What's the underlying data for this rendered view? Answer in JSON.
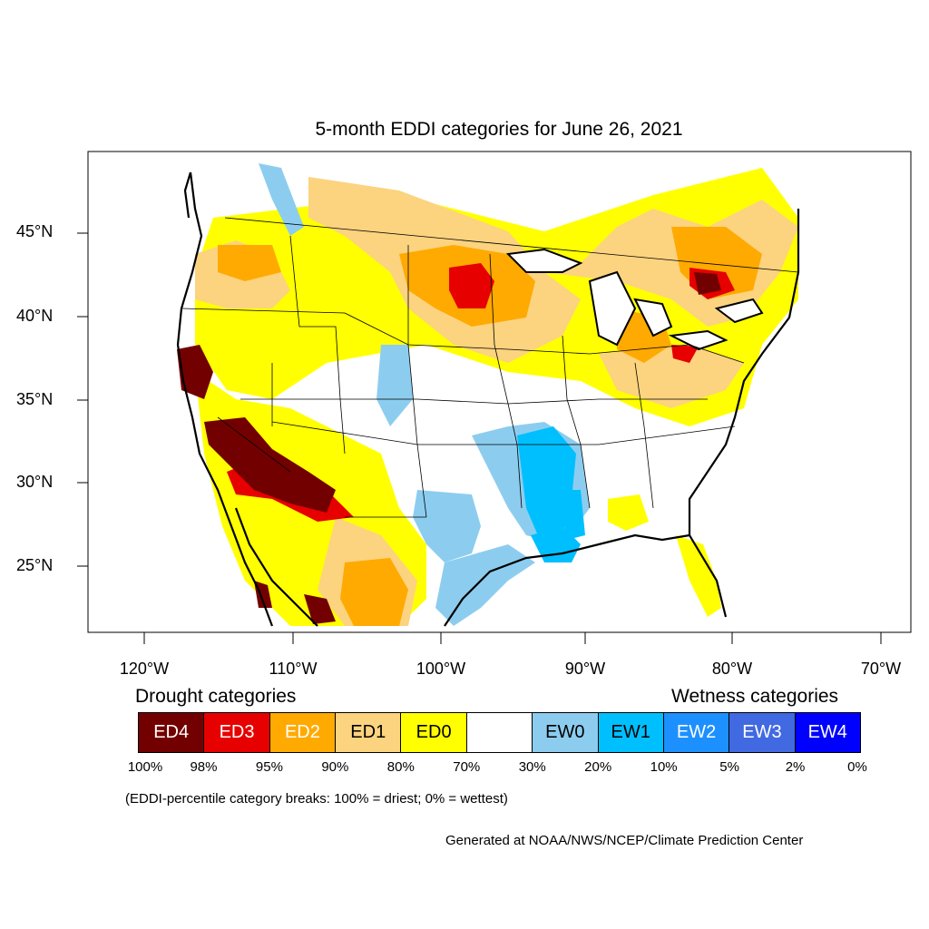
{
  "title": "5-month EDDI categories for June 26, 2021",
  "axes": {
    "lat_labels": [
      "45°N",
      "40°N",
      "35°N",
      "30°N",
      "25°N"
    ],
    "lon_labels": [
      "120°W",
      "110°W",
      "100°W",
      "90°W",
      "80°W",
      "70°W"
    ]
  },
  "legend": {
    "drought_heading": "Drought categories",
    "wetness_heading": "Wetness categories",
    "categories": [
      {
        "label": "ED4",
        "color": "#730000",
        "text_color": "#ffffff"
      },
      {
        "label": "ED3",
        "color": "#e60000",
        "text_color": "#ffffff"
      },
      {
        "label": "ED2",
        "color": "#ffaa00",
        "text_color": "#ffffff"
      },
      {
        "label": "ED1",
        "color": "#fcd37f",
        "text_color": "#000000"
      },
      {
        "label": "ED0",
        "color": "#ffff00",
        "text_color": "#000000"
      },
      {
        "label": "",
        "color": "#ffffff",
        "text_color": "#000000"
      },
      {
        "label": "EW0",
        "color": "#8ccdef",
        "text_color": "#000000"
      },
      {
        "label": "EW1",
        "color": "#00bfff",
        "text_color": "#000000"
      },
      {
        "label": "EW2",
        "color": "#1d90ff",
        "text_color": "#ffffff"
      },
      {
        "label": "EW3",
        "color": "#4169e1",
        "text_color": "#ffffff"
      },
      {
        "label": "EW4",
        "color": "#0000ff",
        "text_color": "#ffffff"
      }
    ],
    "breaks": [
      "100%",
      "98%",
      "95%",
      "90%",
      "80%",
      "70%",
      "30%",
      "20%",
      "10%",
      "5%",
      "2%",
      "0%"
    ],
    "note": "(EDDI-percentile category breaks: 100% = driest; 0% = wettest)"
  },
  "credit": "Generated at NOAA/NWS/NCEP/Climate Prediction Center"
}
